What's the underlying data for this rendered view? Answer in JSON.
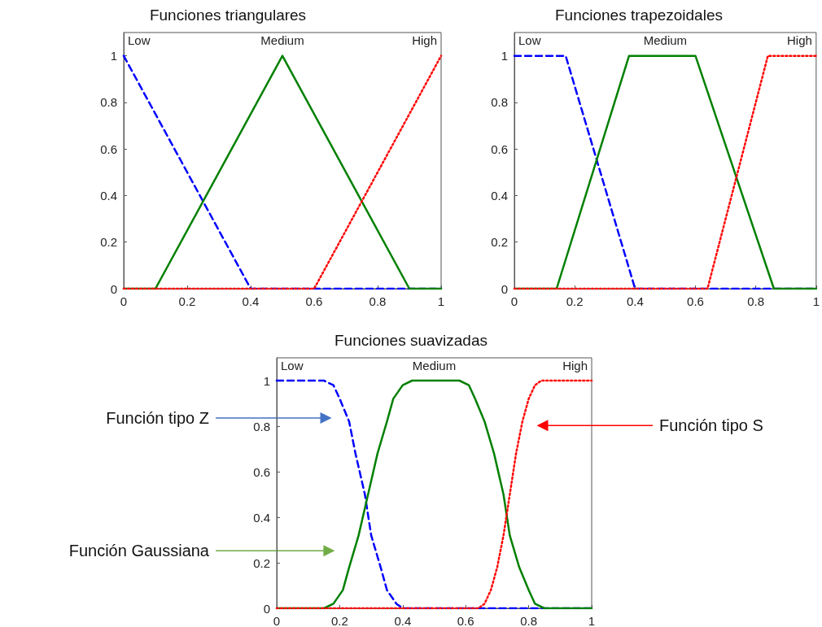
{
  "chart_data": [
    {
      "type": "line",
      "title": "Funciones triangulares",
      "xlim": [
        0,
        1
      ],
      "ylim": [
        0,
        1.1
      ],
      "xticks": [
        0,
        0.2,
        0.4,
        0.6,
        0.8,
        1
      ],
      "yticks": [
        0,
        0.2,
        0.4,
        0.6,
        0.8,
        1
      ],
      "series": [
        {
          "name": "Low",
          "color": "#0000ff",
          "line_style": "dashed",
          "x": [
            0,
            0.4,
            1
          ],
          "values": [
            1,
            0,
            0
          ]
        },
        {
          "name": "Medium",
          "color": "#008000",
          "line_style": "solid",
          "x": [
            0,
            0.1,
            0.5,
            0.9,
            1
          ],
          "values": [
            0,
            0,
            1,
            0,
            0
          ]
        },
        {
          "name": "High",
          "color": "#ff0000",
          "line_style": "dotted",
          "x": [
            0,
            0.6,
            1
          ],
          "values": [
            0,
            0,
            1
          ]
        }
      ]
    },
    {
      "type": "line",
      "title": "Funciones trapezoidales",
      "xlim": [
        0,
        1
      ],
      "ylim": [
        0,
        1.1
      ],
      "xticks": [
        0,
        0.2,
        0.4,
        0.6,
        0.8,
        1
      ],
      "yticks": [
        0,
        0.2,
        0.4,
        0.6,
        0.8,
        1
      ],
      "series": [
        {
          "name": "Low",
          "color": "#0000ff",
          "line_style": "dashed",
          "x": [
            0,
            0.17,
            0.4,
            1
          ],
          "values": [
            1,
            1,
            0,
            0
          ]
        },
        {
          "name": "Medium",
          "color": "#008000",
          "line_style": "solid",
          "x": [
            0,
            0.14,
            0.38,
            0.6,
            0.86,
            1
          ],
          "values": [
            0,
            0,
            1,
            1,
            0,
            0
          ]
        },
        {
          "name": "High",
          "color": "#ff0000",
          "line_style": "dotted",
          "x": [
            0,
            0.64,
            0.84,
            1
          ],
          "values": [
            0,
            0,
            1,
            1
          ]
        }
      ]
    },
    {
      "type": "line",
      "title": "Funciones suavizadas",
      "xlim": [
        0,
        1
      ],
      "ylim": [
        0,
        1.1
      ],
      "xticks": [
        0,
        0.2,
        0.4,
        0.6,
        0.8,
        1
      ],
      "yticks": [
        0,
        0.2,
        0.4,
        0.6,
        0.8,
        1
      ],
      "series": [
        {
          "name": "Low",
          "color": "#0000ff",
          "line_style": "dashed",
          "x": [
            0,
            0.15,
            0.18,
            0.2,
            0.23,
            0.25,
            0.28,
            0.3,
            0.33,
            0.35,
            0.38,
            0.4,
            1
          ],
          "values": [
            1,
            1,
            0.98,
            0.92,
            0.82,
            0.68,
            0.5,
            0.32,
            0.18,
            0.08,
            0.02,
            0,
            0
          ]
        },
        {
          "name": "Medium",
          "color": "#008000",
          "line_style": "solid",
          "x": [
            0,
            0.15,
            0.18,
            0.21,
            0.23,
            0.26,
            0.29,
            0.32,
            0.35,
            0.37,
            0.4,
            0.43,
            0.58,
            0.61,
            0.63,
            0.66,
            0.69,
            0.72,
            0.74,
            0.77,
            0.8,
            0.82,
            0.85,
            1
          ],
          "values": [
            0,
            0,
            0.02,
            0.08,
            0.18,
            0.32,
            0.5,
            0.68,
            0.82,
            0.92,
            0.98,
            1,
            1,
            0.98,
            0.92,
            0.82,
            0.68,
            0.5,
            0.32,
            0.18,
            0.08,
            0.02,
            0,
            0
          ]
        },
        {
          "name": "High",
          "color": "#ff0000",
          "line_style": "dotted",
          "x": [
            0,
            0.64,
            0.66,
            0.68,
            0.7,
            0.72,
            0.74,
            0.76,
            0.78,
            0.8,
            0.82,
            0.84,
            1
          ],
          "values": [
            0,
            0,
            0.02,
            0.08,
            0.18,
            0.32,
            0.5,
            0.68,
            0.82,
            0.92,
            0.98,
            1,
            1
          ]
        }
      ],
      "annotations": [
        "Función tipo Z",
        "Función tipo S",
        "Función Gaussiana"
      ]
    }
  ]
}
